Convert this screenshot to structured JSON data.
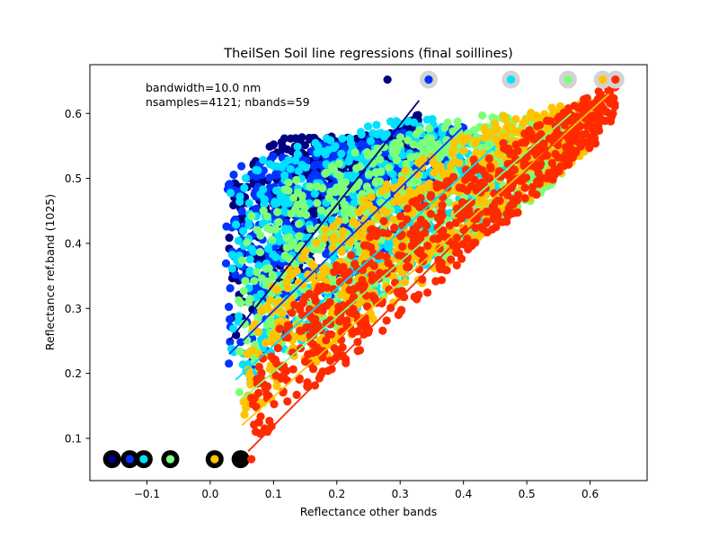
{
  "chart_data": {
    "type": "scatter",
    "title": "TheilSen Soil line regressions (final soillines)",
    "xlabel": "Reflectance other bands",
    "ylabel": "Reflectance ref.band (1025)",
    "xlim": [
      -0.19,
      0.69
    ],
    "ylim": [
      0.035,
      0.675
    ],
    "xticks": [
      -0.1,
      0.0,
      0.1,
      0.2,
      0.3,
      0.4,
      0.5,
      0.6
    ],
    "xtick_labels": [
      "−0.1",
      "0.0",
      "0.1",
      "0.2",
      "0.3",
      "0.4",
      "0.5",
      "0.6"
    ],
    "yticks": [
      0.1,
      0.2,
      0.3,
      0.4,
      0.5,
      0.6
    ],
    "ytick_labels": [
      "0.1",
      "0.2",
      "0.3",
      "0.4",
      "0.5",
      "0.6"
    ],
    "grid": false,
    "annotations": [
      "bandwidth=10.0 nm",
      "nsamples=4121; nbands=59"
    ],
    "series": [
      {
        "color": "#000080",
        "cloud": {
          "xmin": 0.03,
          "y_at_xmin": [
            0.24,
            0.55
          ],
          "slope_upper": 0.3,
          "apex": [
            0.285,
            0.57
          ],
          "xmax": 0.33,
          "y_at_xmax": [
            0.55,
            0.6
          ]
        },
        "line": [
          [
            0.03,
            0.25
          ],
          [
            0.33,
            0.62
          ]
        ],
        "dark_point": [
          -0.155,
          0.068
        ],
        "bright_point": [
          0.28,
          0.652
        ],
        "bright_point_gray": false
      },
      {
        "color": "#0033ff",
        "cloud": {
          "xmin": 0.025,
          "y_at_xmin": [
            0.16,
            0.5
          ],
          "slope_upper": 0.5,
          "apex": [
            0.3,
            0.57
          ],
          "xmax": 0.4,
          "y_at_xmax": [
            0.5,
            0.58
          ]
        },
        "line": [
          [
            0.03,
            0.23
          ],
          [
            0.4,
            0.58
          ]
        ],
        "dark_point": [
          -0.127,
          0.068
        ],
        "bright_point": [
          0.345,
          0.652
        ],
        "bright_point_gray": true
      },
      {
        "color": "#00e0ff",
        "cloud": {
          "xmin": 0.03,
          "y_at_xmin": [
            0.16,
            0.48
          ],
          "slope_upper": 0.65,
          "apex": [
            0.33,
            0.6
          ],
          "xmax": 0.47,
          "y_at_xmax": [
            0.45,
            0.56
          ]
        },
        "line": [
          [
            0.04,
            0.19
          ],
          [
            0.45,
            0.55
          ]
        ],
        "dark_point": [
          -0.105,
          0.068
        ],
        "bright_point": [
          0.475,
          0.652
        ],
        "bright_point_gray": true
      },
      {
        "color": "#7dff7a",
        "cloud": {
          "xmin": 0.04,
          "y_at_xmin": [
            0.16,
            0.4
          ],
          "slope_upper": 0.75,
          "apex": [
            0.42,
            0.6
          ],
          "xmax": 0.56,
          "y_at_xmax": [
            0.5,
            0.59
          ]
        },
        "line": [
          [
            0.05,
            0.16
          ],
          [
            0.57,
            0.6
          ]
        ],
        "dark_point": [
          -0.063,
          0.068
        ],
        "bright_point": [
          0.565,
          0.652
        ],
        "bright_point_gray": true
      },
      {
        "color": "#ffc400",
        "cloud": {
          "xmin": 0.05,
          "y_at_xmin": [
            0.12,
            0.2
          ],
          "slope_upper": 0.8,
          "apex": [
            0.47,
            0.6
          ],
          "xmax": 0.61,
          "y_at_xmax": [
            0.55,
            0.62
          ]
        },
        "line": [
          [
            0.05,
            0.12
          ],
          [
            0.63,
            0.63
          ]
        ],
        "dark_point": [
          0.007,
          0.068
        ],
        "bright_point": [
          0.62,
          0.652
        ],
        "bright_point_gray": true
      },
      {
        "color": "#ff2a00",
        "cloud": {
          "xmin": 0.06,
          "y_at_xmin": [
            0.08,
            0.12
          ],
          "slope_upper": 0.9,
          "apex": [
            0.55,
            0.6
          ],
          "xmax": 0.64,
          "y_at_xmax": [
            0.58,
            0.65
          ]
        },
        "line": [
          [
            0.06,
            0.08
          ],
          [
            0.64,
            0.65
          ]
        ],
        "dark_point": [
          0.048,
          0.068
        ],
        "bright_point": [
          0.64,
          0.652
        ],
        "bright_point_gray": true
      }
    ],
    "endpoint_markers": {
      "dark_color": "#000000",
      "bright_halo_color": "#d3d3d3"
    }
  }
}
